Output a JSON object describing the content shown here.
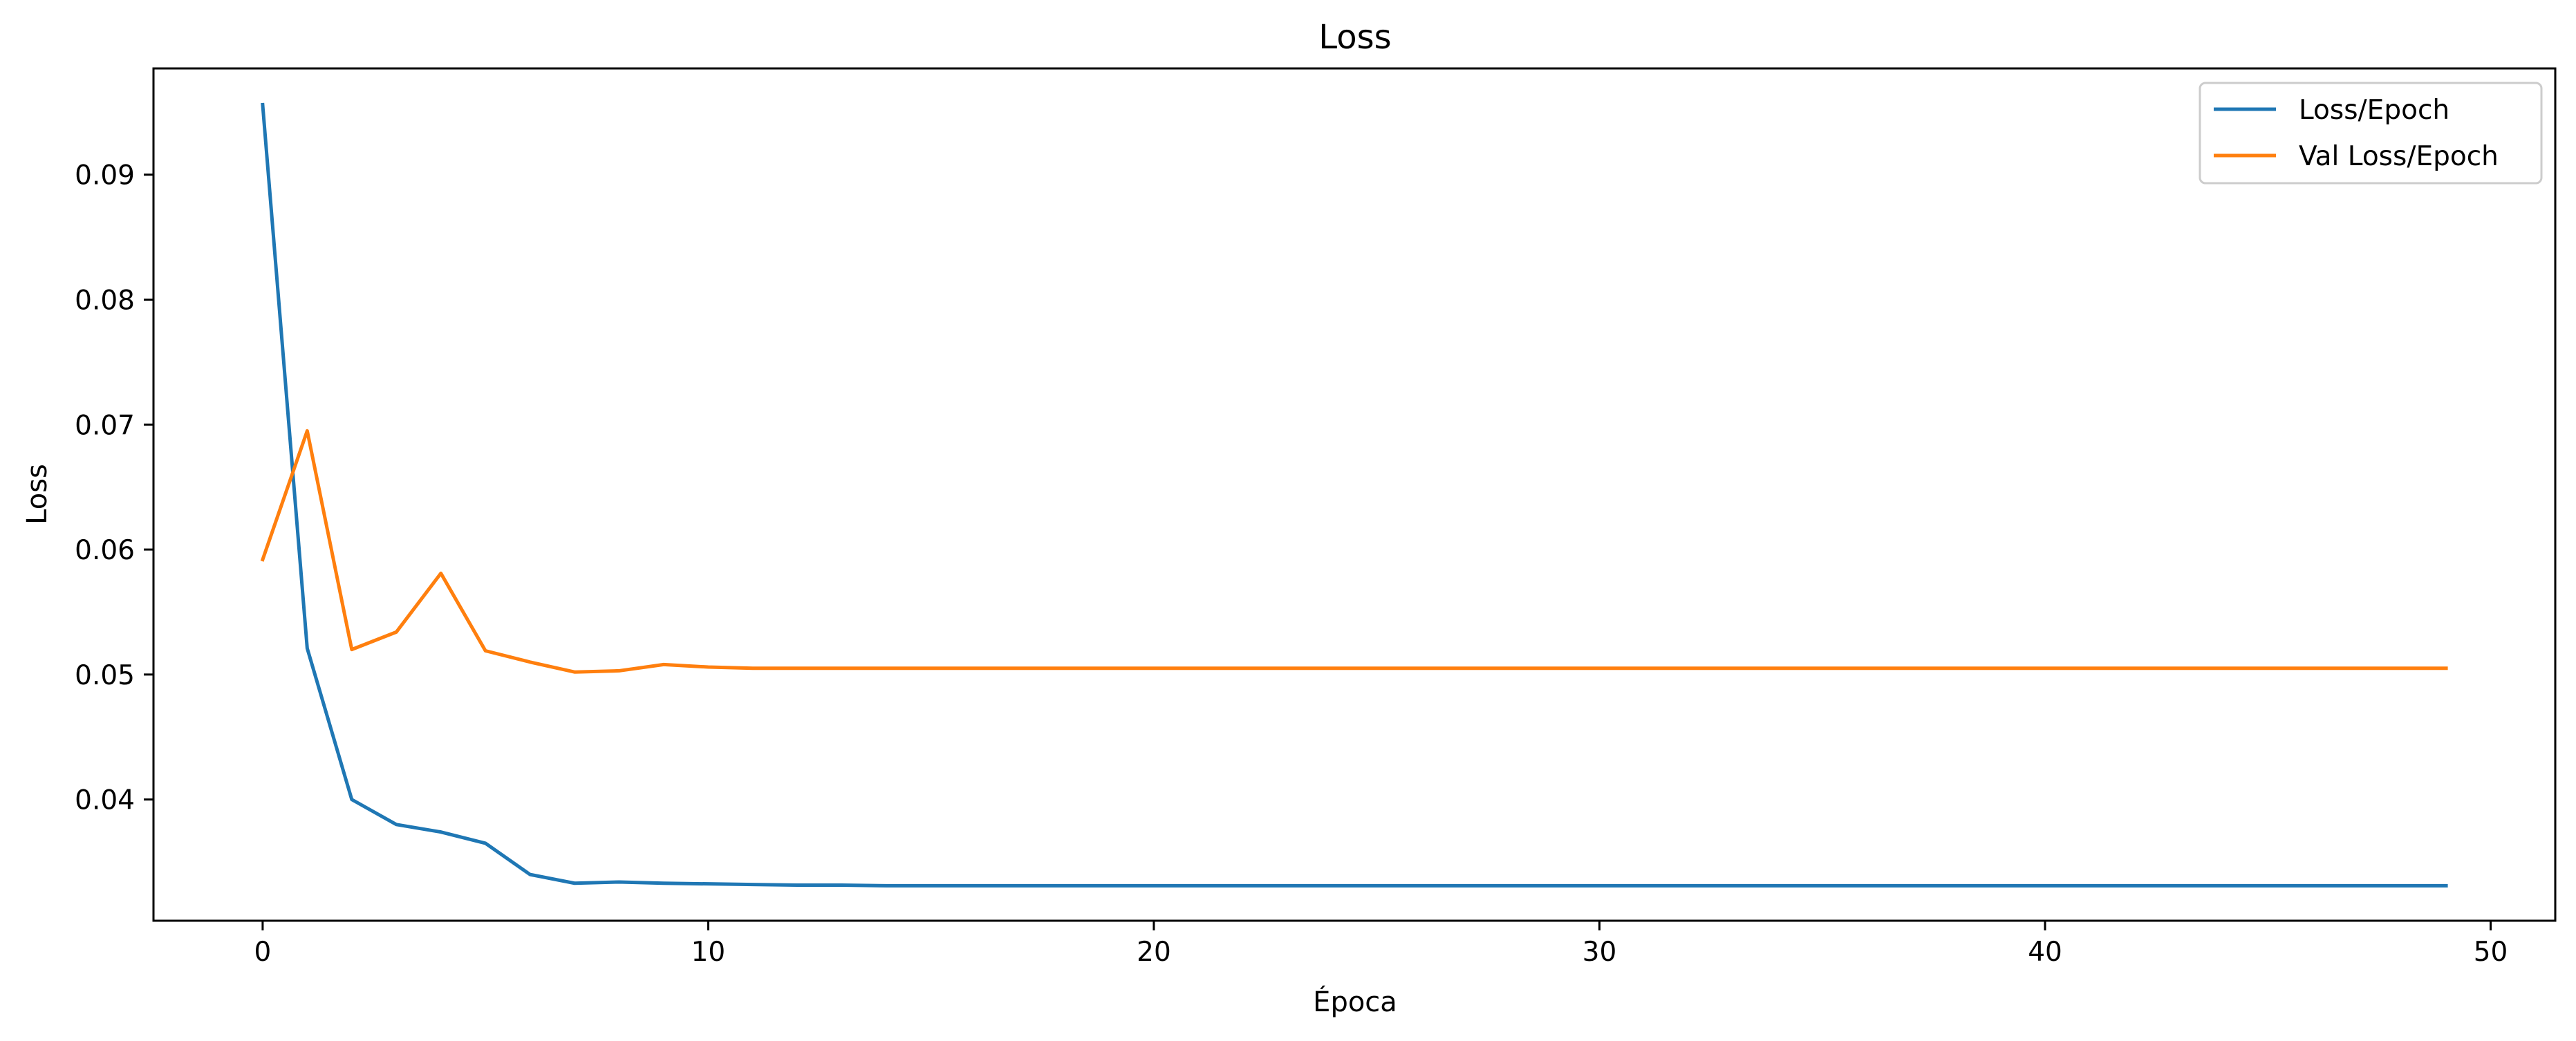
{
  "colors": {
    "series_1": "#1f77b4",
    "series_2": "#ff7f0e"
  },
  "chart_data": {
    "type": "line",
    "title": "Loss",
    "xlabel": "Época",
    "ylabel": "Loss",
    "xlim": [
      -2.45,
      51.45
    ],
    "ylim": [
      0.0303,
      0.0985
    ],
    "x_ticks": [
      0,
      10,
      20,
      30,
      40,
      50
    ],
    "y_ticks": [
      0.04,
      0.05,
      0.06,
      0.07,
      0.08,
      0.09
    ],
    "x_tick_labels": [
      "0",
      "10",
      "20",
      "30",
      "40",
      "50"
    ],
    "y_tick_labels": [
      "0.04",
      "0.05",
      "0.06",
      "0.07",
      "0.08",
      "0.09"
    ],
    "grid": false,
    "legend_position": "top-right",
    "x": [
      0,
      1,
      2,
      3,
      4,
      5,
      6,
      7,
      8,
      9,
      10,
      11,
      12,
      13,
      14,
      15,
      16,
      17,
      18,
      19,
      20,
      21,
      22,
      23,
      24,
      25,
      26,
      27,
      28,
      29,
      30,
      31,
      32,
      33,
      34,
      35,
      36,
      37,
      38,
      39,
      40,
      41,
      42,
      43,
      44,
      45,
      46,
      47,
      48,
      49
    ],
    "series": [
      {
        "name": "Loss/Epoch",
        "values": [
          0.0956,
          0.0521,
          0.04,
          0.038,
          0.0374,
          0.0365,
          0.034,
          0.0333,
          0.0334,
          0.0333,
          0.03325,
          0.0332,
          0.03315,
          0.03315,
          0.0331,
          0.0331,
          0.0331,
          0.0331,
          0.0331,
          0.0331,
          0.0331,
          0.0331,
          0.0331,
          0.0331,
          0.0331,
          0.0331,
          0.0331,
          0.0331,
          0.0331,
          0.0331,
          0.0331,
          0.0331,
          0.0331,
          0.0331,
          0.0331,
          0.0331,
          0.0331,
          0.0331,
          0.0331,
          0.0331,
          0.0331,
          0.0331,
          0.0331,
          0.0331,
          0.0331,
          0.0331,
          0.0331,
          0.0331,
          0.0331,
          0.0331
        ]
      },
      {
        "name": "Val Loss/Epoch",
        "values": [
          0.0592,
          0.0695,
          0.052,
          0.0534,
          0.0581,
          0.0519,
          0.051,
          0.0502,
          0.0503,
          0.0508,
          0.0506,
          0.0505,
          0.0505,
          0.0505,
          0.0505,
          0.0505,
          0.0505,
          0.0505,
          0.0505,
          0.0505,
          0.0505,
          0.0505,
          0.0505,
          0.0505,
          0.0505,
          0.0505,
          0.0505,
          0.0505,
          0.0505,
          0.0505,
          0.0505,
          0.0505,
          0.0505,
          0.0505,
          0.0505,
          0.0505,
          0.0505,
          0.0505,
          0.0505,
          0.0505,
          0.0505,
          0.0505,
          0.0505,
          0.0505,
          0.0505,
          0.0505,
          0.0505,
          0.0505,
          0.0505,
          0.0505
        ]
      }
    ]
  }
}
